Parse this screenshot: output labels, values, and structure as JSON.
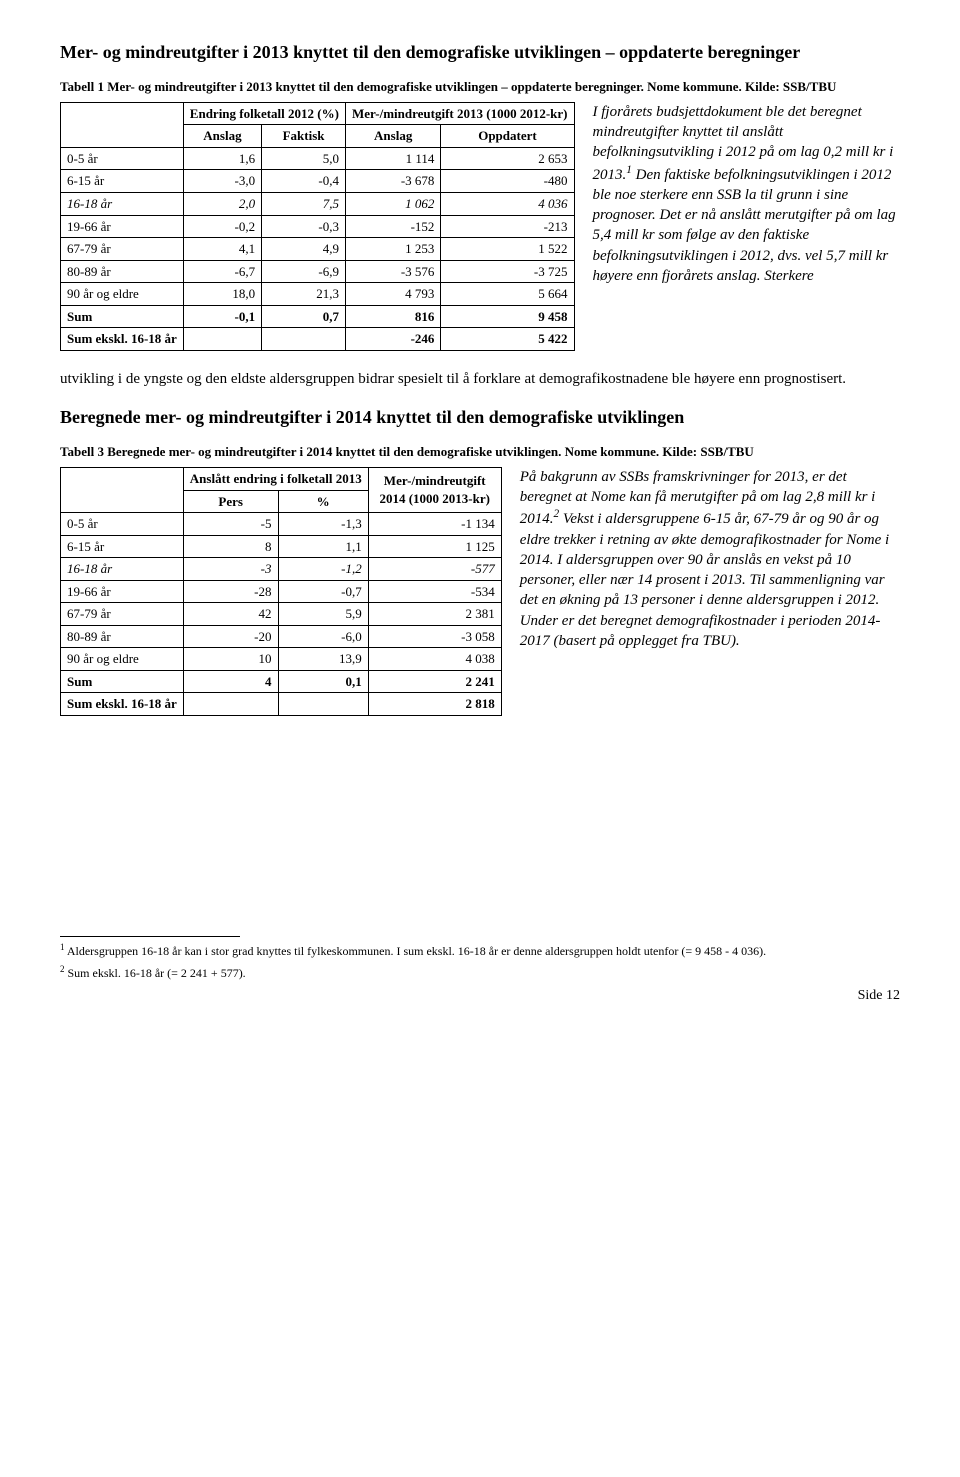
{
  "section1": {
    "heading": "Mer- og mindreutgifter i 2013 knyttet til den demografiske utviklingen – oppdaterte beregninger",
    "tabledesc": "Tabell 1 Mer- og mindreutgifter i 2013 knyttet til den demografiske utviklingen – oppdaterte beregninger. Nome kommune. Kilde: SSB/TBU",
    "table": {
      "colgroup1": "Endring folketall 2012 (%)",
      "colgroup2": "Mer-/mindreutgift 2013 (1000 2012-kr)",
      "sub1": "Anslag",
      "sub2": "Faktisk",
      "sub3": "Anslag",
      "sub4": "Oppdatert",
      "rows": [
        {
          "label": "0-5 år",
          "a": "1,6",
          "b": "5,0",
          "c": "1 114",
          "d": "2 653",
          "italic": false,
          "bold": false
        },
        {
          "label": "6-15 år",
          "a": "-3,0",
          "b": "-0,4",
          "c": "-3 678",
          "d": "-480",
          "italic": false,
          "bold": false
        },
        {
          "label": "16-18 år",
          "a": "2,0",
          "b": "7,5",
          "c": "1 062",
          "d": "4 036",
          "italic": true,
          "bold": false
        },
        {
          "label": "19-66 år",
          "a": "-0,2",
          "b": "-0,3",
          "c": "-152",
          "d": "-213",
          "italic": false,
          "bold": false
        },
        {
          "label": "67-79 år",
          "a": "4,1",
          "b": "4,9",
          "c": "1 253",
          "d": "1 522",
          "italic": false,
          "bold": false
        },
        {
          "label": "80-89 år",
          "a": "-6,7",
          "b": "-6,9",
          "c": "-3 576",
          "d": "-3 725",
          "italic": false,
          "bold": false
        },
        {
          "label": "90 år og eldre",
          "a": "18,0",
          "b": "21,3",
          "c": "4 793",
          "d": "5 664",
          "italic": false,
          "bold": false
        },
        {
          "label": "Sum",
          "a": "-0,1",
          "b": "0,7",
          "c": "816",
          "d": "9 458",
          "italic": false,
          "bold": true
        },
        {
          "label": "Sum ekskl. 16-18 år",
          "a": "",
          "b": "",
          "c": "-246",
          "d": "5 422",
          "italic": false,
          "bold": true
        }
      ]
    },
    "aside_html": "I fjorårets budsjettdokument ble det beregnet mindreutgifter knyttet til anslått befolkningsutvikling i 2012 på om lag 0,2 mill kr i 2013.<sup>1</sup> Den faktiske befolkningsutviklingen i 2012 ble noe sterkere enn SSB la til grunn i sine prognoser. Det er nå anslått merutgifter på om lag 5,4 mill kr som følge av den faktiske befolkningsutviklingen i 2012, dvs. vel 5,7 mill kr høyere enn fjorårets anslag. Sterkere",
    "trail": "utvikling i de yngste og den eldste aldersgruppen bidrar spesielt til å forklare at demografikostnadene ble høyere enn prognostisert."
  },
  "section2": {
    "heading": "Beregnede mer- og mindreutgifter i 2014 knyttet til den demografiske utviklingen",
    "tabledesc": "Tabell 3 Beregnede mer- og mindreutgifter i 2014 knyttet til den demografiske utviklingen. Nome kommune. Kilde: SSB/TBU",
    "table": {
      "colgroup1": "Anslått endring i folketall 2013",
      "col3": "Mer-/mindreutgift 2014 (1000 2013-kr)",
      "sub1": "Pers",
      "sub2": "%",
      "rows": [
        {
          "label": "0-5 år",
          "a": "-5",
          "b": "-1,3",
          "c": "-1 134",
          "italic": false,
          "bold": false
        },
        {
          "label": "6-15 år",
          "a": "8",
          "b": "1,1",
          "c": "1 125",
          "italic": false,
          "bold": false
        },
        {
          "label": "16-18 år",
          "a": "-3",
          "b": "-1,2",
          "c": "-577",
          "italic": true,
          "bold": false
        },
        {
          "label": "19-66 år",
          "a": "-28",
          "b": "-0,7",
          "c": "-534",
          "italic": false,
          "bold": false
        },
        {
          "label": "67-79 år",
          "a": "42",
          "b": "5,9",
          "c": "2 381",
          "italic": false,
          "bold": false
        },
        {
          "label": "80-89 år",
          "a": "-20",
          "b": "-6,0",
          "c": "-3 058",
          "italic": false,
          "bold": false
        },
        {
          "label": "90 år og eldre",
          "a": "10",
          "b": "13,9",
          "c": "4 038",
          "italic": false,
          "bold": false
        },
        {
          "label": "Sum",
          "a": "4",
          "b": "0,1",
          "c": "2 241",
          "italic": false,
          "bold": true
        },
        {
          "label": "Sum ekskl. 16-18 år",
          "a": "",
          "b": "",
          "c": "2 818",
          "italic": false,
          "bold": true
        }
      ]
    },
    "aside_html": "På bakgrunn av SSBs framskrivninger for 2013, er det beregnet at Nome kan få merutgifter på om lag 2,8 mill kr i 2014.<sup>2</sup> Vekst i aldersgruppene 6-15 år, 67-79 år og 90 år og eldre trekker i retning av økte demografikostnader for Nome i 2014. I aldersgruppen over 90 år anslås en vekst på 10 personer, eller nær 14 prosent i 2013. Til sammenligning var det en økning på 13 personer i denne aldersgruppen i 2012. Under er det beregnet demografikostnader i perioden 2014-2017 (basert på opplegget fra TBU)."
  },
  "footnotes": {
    "f1": "Aldersgruppen 16-18 år kan i stor grad knyttes til fylkeskommunen. I sum ekskl. 16-18 år er denne aldersgruppen holdt utenfor (= 9 458 - 4 036).",
    "f2": "Sum ekskl. 16-18 år (= 2 241 + 577)."
  },
  "pagenum": "Side 12"
}
